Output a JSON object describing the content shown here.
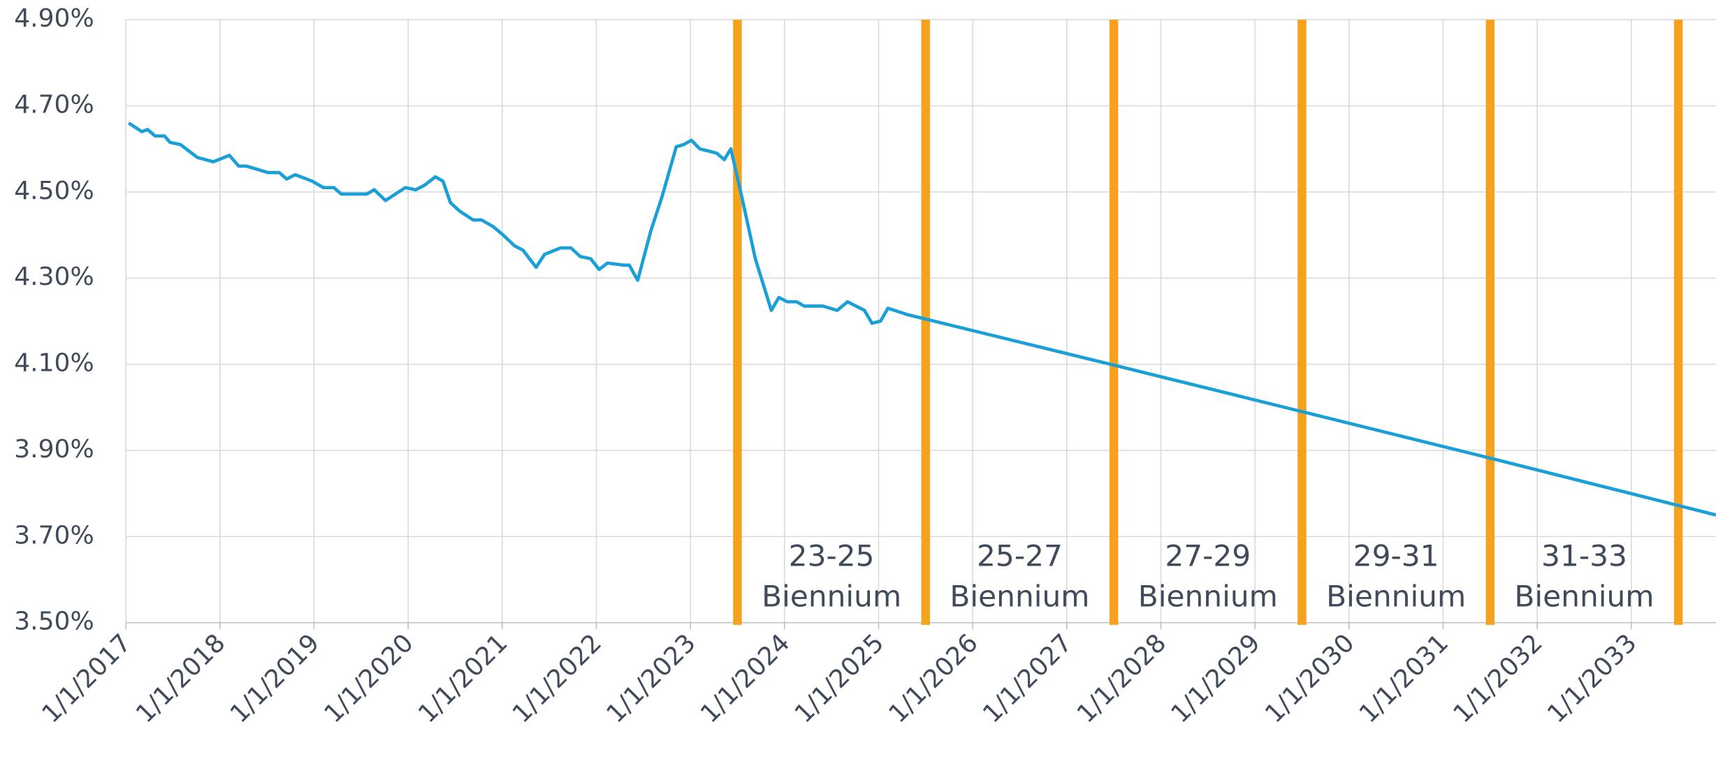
{
  "chart_data": {
    "type": "line",
    "xlim": [
      2017,
      2033.9
    ],
    "ylim": [
      3.5,
      4.9
    ],
    "yticks": [
      {
        "value": 3.5,
        "label": "3.50%"
      },
      {
        "value": 3.7,
        "label": "3.70%"
      },
      {
        "value": 3.9,
        "label": "3.90%"
      },
      {
        "value": 4.1,
        "label": "4.10%"
      },
      {
        "value": 4.3,
        "label": "4.30%"
      },
      {
        "value": 4.5,
        "label": "4.50%"
      },
      {
        "value": 4.7,
        "label": "4.70%"
      },
      {
        "value": 4.9,
        "label": "4.90%"
      }
    ],
    "xticks": [
      {
        "value": 2017,
        "label": "1/1/2017"
      },
      {
        "value": 2018,
        "label": "1/1/2018"
      },
      {
        "value": 2019,
        "label": "1/1/2019"
      },
      {
        "value": 2020,
        "label": "1/1/2020"
      },
      {
        "value": 2021,
        "label": "1/1/2021"
      },
      {
        "value": 2022,
        "label": "1/1/2022"
      },
      {
        "value": 2023,
        "label": "1/1/2023"
      },
      {
        "value": 2024,
        "label": "1/1/2024"
      },
      {
        "value": 2025,
        "label": "1/1/2025"
      },
      {
        "value": 2026,
        "label": "1/1/2026"
      },
      {
        "value": 2027,
        "label": "1/1/2027"
      },
      {
        "value": 2028,
        "label": "1/1/2028"
      },
      {
        "value": 2029,
        "label": "1/1/2029"
      },
      {
        "value": 2030,
        "label": "1/1/2030"
      },
      {
        "value": 2031,
        "label": "1/1/2031"
      },
      {
        "value": 2032,
        "label": "1/1/2032"
      },
      {
        "value": 2033,
        "label": "1/1/2033"
      }
    ],
    "grid": true,
    "series": [
      {
        "color": "#1a9fd6",
        "x": [
          2017.03,
          2017.17,
          2017.23,
          2017.31,
          2017.41,
          2017.47,
          2017.58,
          2017.76,
          2017.93,
          2018.1,
          2018.2,
          2018.28,
          2018.36,
          2018.51,
          2018.63,
          2018.71,
          2018.8,
          2018.98,
          2019.1,
          2019.21,
          2019.29,
          2019.38,
          2019.56,
          2019.64,
          2019.76,
          2019.97,
          2020.08,
          2020.17,
          2020.29,
          2020.37,
          2020.45,
          2020.55,
          2020.69,
          2020.78,
          2020.9,
          2021.01,
          2021.13,
          2021.22,
          2021.36,
          2021.45,
          2021.62,
          2021.73,
          2021.83,
          2021.94,
          2022.03,
          2022.12,
          2022.29,
          2022.35,
          2022.44,
          2022.58,
          2022.7,
          2022.85,
          2022.93,
          2023.01,
          2023.1,
          2023.28,
          2023.36,
          2023.43,
          2023.55,
          2023.69,
          2023.86,
          2023.94,
          2024.03,
          2024.13,
          2024.21,
          2024.33,
          2024.41,
          2024.56,
          2024.67,
          2024.85,
          2024.93,
          2025.02,
          2025.1,
          2025.31,
          2027.5,
          2029.5,
          2031.5,
          2033.9
        ],
        "values": [
          4.66,
          4.64,
          4.645,
          4.63,
          4.63,
          4.615,
          4.61,
          4.58,
          4.57,
          4.585,
          4.56,
          4.56,
          4.555,
          4.545,
          4.545,
          4.53,
          4.54,
          4.525,
          4.51,
          4.51,
          4.495,
          4.495,
          4.495,
          4.505,
          4.48,
          4.51,
          4.505,
          4.515,
          4.535,
          4.525,
          4.475,
          4.455,
          4.435,
          4.435,
          4.42,
          4.4,
          4.375,
          4.365,
          4.325,
          4.355,
          4.37,
          4.37,
          4.35,
          4.345,
          4.32,
          4.335,
          4.33,
          4.33,
          4.295,
          4.41,
          4.49,
          4.605,
          4.61,
          4.62,
          4.6,
          4.59,
          4.575,
          4.6,
          4.485,
          4.345,
          4.225,
          4.255,
          4.245,
          4.245,
          4.235,
          4.235,
          4.235,
          4.225,
          4.245,
          4.225,
          4.195,
          4.2,
          4.23,
          4.215,
          4.098,
          3.99,
          3.882,
          3.75
        ]
      }
    ],
    "vlines": {
      "color": "#f6a21e",
      "x": [
        2023.5,
        2025.5,
        2027.5,
        2029.5,
        2031.5,
        2033.5
      ]
    },
    "annotations": [
      [
        "23-25",
        "Biennium"
      ],
      [
        "25-27",
        "Biennium"
      ],
      [
        "27-29",
        "Biennium"
      ],
      [
        "29-31",
        "Biennium"
      ],
      [
        "31-33",
        "Biennium"
      ]
    ]
  }
}
